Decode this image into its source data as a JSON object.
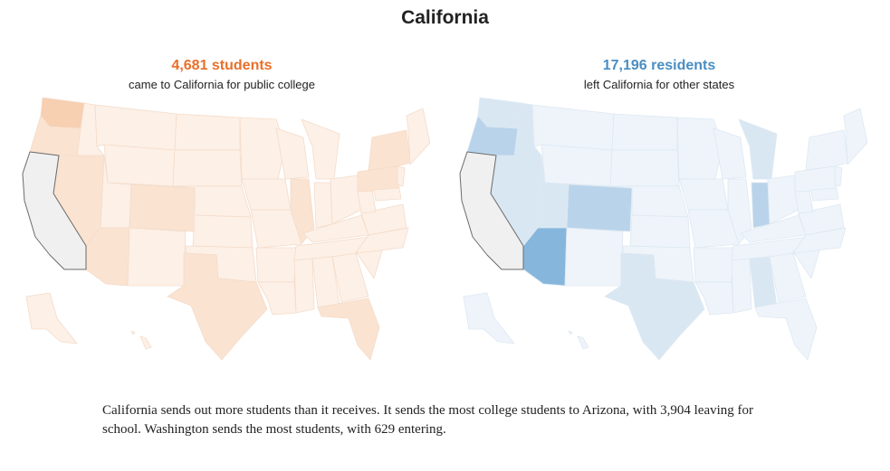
{
  "title": "California",
  "left_panel": {
    "headline": "4,681 students",
    "subtitle": "came to California for public college",
    "accent_color": "#e8702a"
  },
  "right_panel": {
    "headline": "17,196 residents",
    "subtitle": "left California for other states",
    "accent_color": "#4a8ec2"
  },
  "caption": "California sends out more students than it receives. It sends the most college students to Arizona, with 3,904 leaving for school. Washington sends the most students, with 629 entering.",
  "map_colors": {
    "home_state": "#f0f0f0",
    "home_state_stroke": "#6b6b6b",
    "inbound_base": "#fdf0e6",
    "inbound_light": "#fbe3d1",
    "inbound_highlight": "#f7cfb1",
    "outbound_base": "#eef4fa",
    "outbound_light": "#d9e7f3",
    "outbound_mid": "#b9d3ea",
    "outbound_highlight": "#86b6dc"
  }
}
